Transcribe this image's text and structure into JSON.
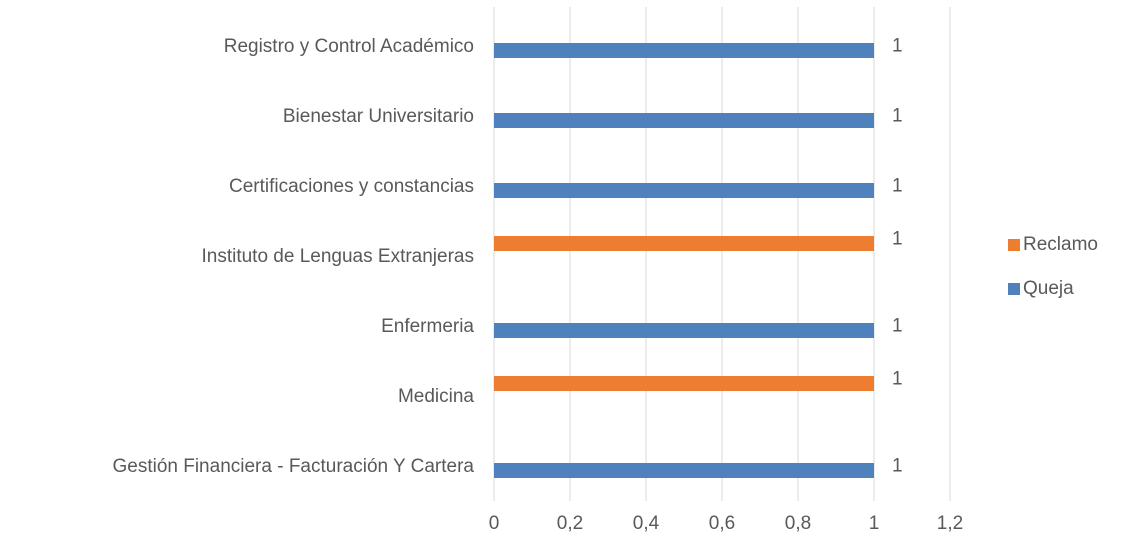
{
  "chart_data": {
    "type": "bar",
    "orientation": "horizontal",
    "categories": [
      "Registro y Control Académico",
      "Bienestar Universitario",
      "Certificaciones y constancias",
      "Instituto de Lenguas Extranjeras",
      "Enfermeria",
      "Medicina",
      "Gestión Financiera - Facturación Y Cartera"
    ],
    "series": [
      {
        "name": "Reclamo",
        "color": "#ed7d31",
        "values": [
          null,
          null,
          null,
          1,
          null,
          1,
          null
        ]
      },
      {
        "name": "Queja",
        "color": "#4f81bd",
        "values": [
          1,
          1,
          1,
          null,
          1,
          null,
          1
        ]
      }
    ],
    "xlim": [
      0,
      1.2
    ],
    "xticks": [
      0,
      {
        "value": 0.2,
        "label": "0,2"
      },
      {
        "value": 0.4,
        "label": "0,4"
      },
      {
        "value": 0.6,
        "label": "0,6"
      },
      {
        "value": 0.8,
        "label": "0,8"
      },
      1,
      {
        "value": 1.2,
        "label": "1,2"
      }
    ],
    "grid": true,
    "legend": "right"
  }
}
